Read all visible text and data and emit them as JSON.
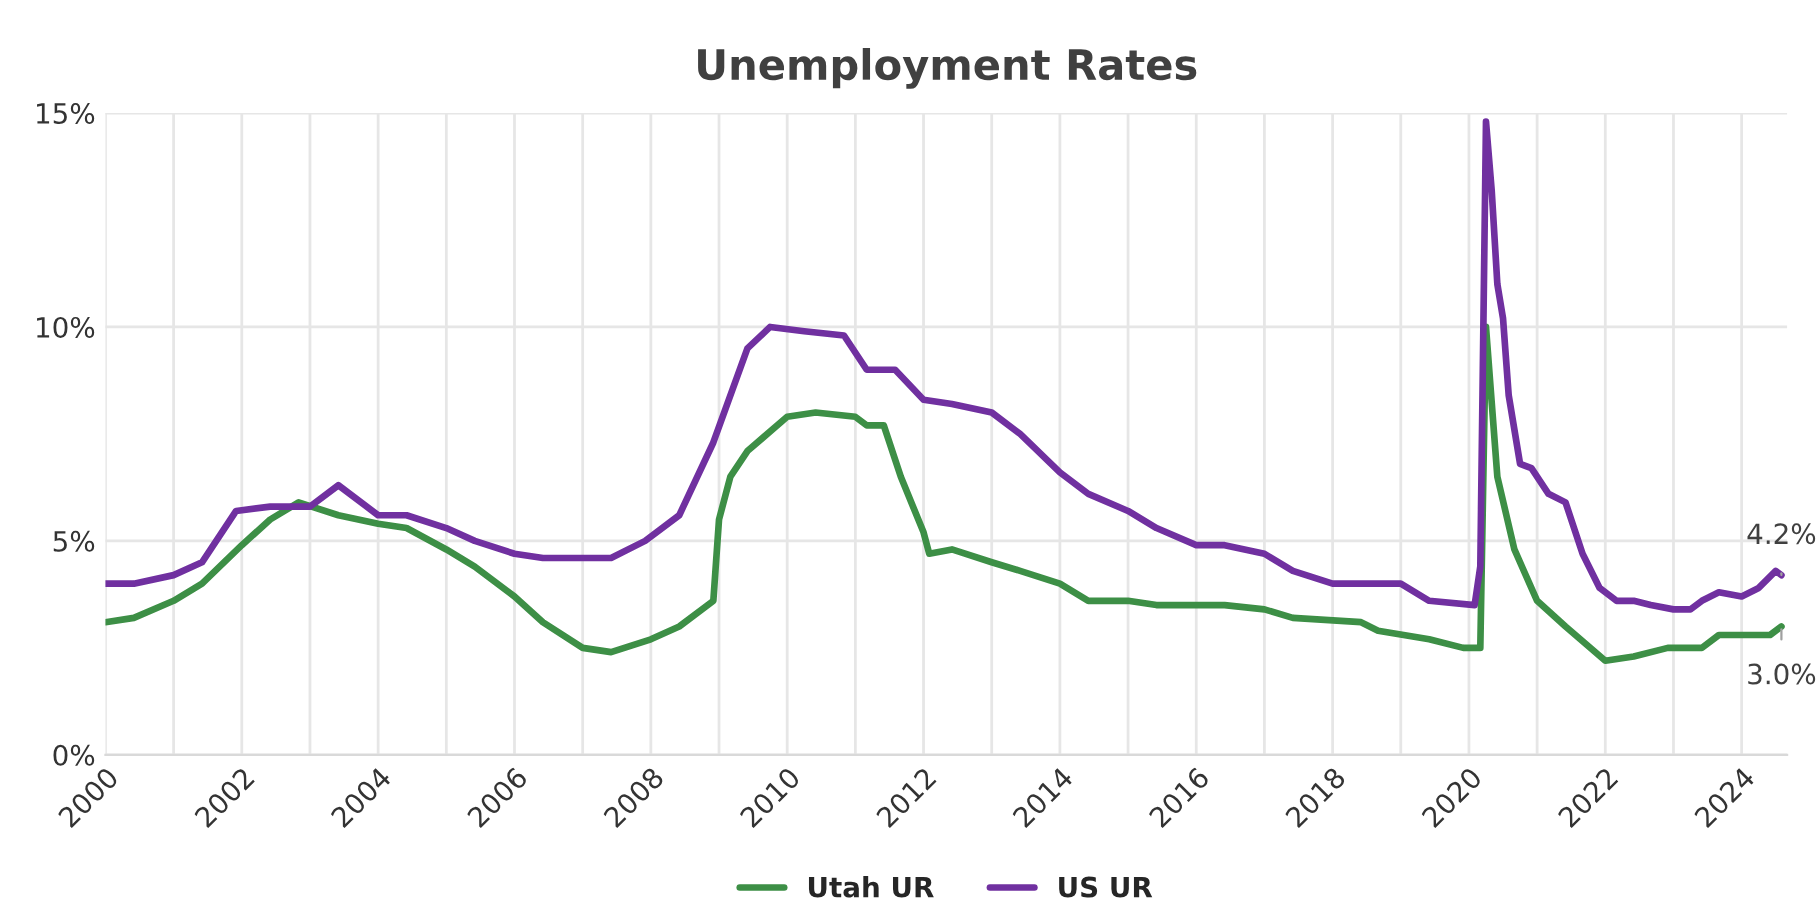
{
  "chart_data": {
    "type": "line",
    "title": "Unemployment Rates",
    "xlim": [
      "2000-01",
      "2024-09"
    ],
    "xticks": [
      {
        "value": "2000",
        "label": "2000"
      },
      {
        "value": "2001",
        "label": null
      },
      {
        "value": "2002",
        "label": "2002"
      },
      {
        "value": "2003",
        "label": null
      },
      {
        "value": "2004",
        "label": "2004"
      },
      {
        "value": "2005",
        "label": null
      },
      {
        "value": "2006",
        "label": "2006"
      },
      {
        "value": "2007",
        "label": null
      },
      {
        "value": "2008",
        "label": "2008"
      },
      {
        "value": "2009",
        "label": null
      },
      {
        "value": "2010",
        "label": "2010"
      },
      {
        "value": "2011",
        "label": null
      },
      {
        "value": "2012",
        "label": "2012"
      },
      {
        "value": "2013",
        "label": null
      },
      {
        "value": "2014",
        "label": "2014"
      },
      {
        "value": "2015",
        "label": null
      },
      {
        "value": "2016",
        "label": "2016"
      },
      {
        "value": "2017",
        "label": null
      },
      {
        "value": "2018",
        "label": "2018"
      },
      {
        "value": "2019",
        "label": null
      },
      {
        "value": "2020",
        "label": "2020"
      },
      {
        "value": "2021",
        "label": null
      },
      {
        "value": "2022",
        "label": "2022"
      },
      {
        "value": "2023",
        "label": null
      },
      {
        "value": "2024",
        "label": "2024"
      }
    ],
    "ylim": [
      0,
      15
    ],
    "yticks": [
      {
        "value": 0,
        "label": "0%"
      },
      {
        "value": 5,
        "label": "5%"
      },
      {
        "value": 10,
        "label": "10%"
      },
      {
        "value": 15,
        "label": "15%"
      }
    ],
    "grid": true,
    "legend": "bottom",
    "marker": "none",
    "line_style": "solid",
    "series": [
      {
        "name": "Utah UR",
        "color": "#3d8f46",
        "x": [
          "2000-01",
          "2000-06",
          "2001-01",
          "2001-06",
          "2002-01",
          "2002-06",
          "2002-11",
          "2003-06",
          "2004-01",
          "2004-06",
          "2005-01",
          "2005-06",
          "2006-01",
          "2006-06",
          "2007-01",
          "2007-06",
          "2008-01",
          "2008-06",
          "2008-12",
          "2009-01",
          "2009-03",
          "2009-06",
          "2010-01",
          "2010-06",
          "2011-01",
          "2011-03",
          "2011-06",
          "2011-09",
          "2012-01",
          "2012-02",
          "2012-06",
          "2013-01",
          "2013-06",
          "2014-01",
          "2014-06",
          "2015-01",
          "2015-06",
          "2016-06",
          "2017-01",
          "2017-06",
          "2018-06",
          "2018-09",
          "2019-06",
          "2019-12",
          "2020-03",
          "2020-04",
          "2020-06",
          "2020-09",
          "2021-01",
          "2021-06",
          "2022-01",
          "2022-06",
          "2022-12",
          "2023-06",
          "2023-09",
          "2024-06",
          "2024-08"
        ],
        "values": [
          3.1,
          3.2,
          3.6,
          4.0,
          4.9,
          5.5,
          5.9,
          5.6,
          5.4,
          5.3,
          4.8,
          4.4,
          3.7,
          3.1,
          2.5,
          2.4,
          2.7,
          3.0,
          3.6,
          5.5,
          6.5,
          7.1,
          7.9,
          8.0,
          7.9,
          7.7,
          7.7,
          6.5,
          5.2,
          4.7,
          4.8,
          4.5,
          4.3,
          4.0,
          3.6,
          3.6,
          3.5,
          3.5,
          3.4,
          3.2,
          3.1,
          2.9,
          2.7,
          2.5,
          2.5,
          10.0,
          6.5,
          4.8,
          3.6,
          3.0,
          2.2,
          2.3,
          2.5,
          2.5,
          2.8,
          2.8,
          3.0
        ]
      },
      {
        "name": "US UR",
        "color": "#7030a0",
        "x": [
          "2000-01",
          "2000-06",
          "2001-01",
          "2001-06",
          "2001-12",
          "2002-06",
          "2003-01",
          "2003-06",
          "2004-01",
          "2004-06",
          "2005-01",
          "2005-06",
          "2006-01",
          "2006-06",
          "2007-01",
          "2007-06",
          "2007-12",
          "2008-06",
          "2008-12",
          "2009-06",
          "2009-10",
          "2010-04",
          "2010-11",
          "2011-03",
          "2011-08",
          "2012-01",
          "2012-06",
          "2013-01",
          "2013-06",
          "2014-01",
          "2014-06",
          "2015-01",
          "2015-06",
          "2016-01",
          "2016-06",
          "2017-01",
          "2017-06",
          "2018-01",
          "2018-06",
          "2019-01",
          "2019-06",
          "2020-02",
          "2020-03",
          "2020-04",
          "2020-05",
          "2020-06",
          "2020-07",
          "2020-08",
          "2020-10",
          "2020-12",
          "2021-03",
          "2021-06",
          "2021-09",
          "2021-12",
          "2022-03",
          "2022-06",
          "2022-09",
          "2023-01",
          "2023-04",
          "2023-06",
          "2023-09",
          "2024-01",
          "2024-04",
          "2024-07",
          "2024-08"
        ],
        "values": [
          4.0,
          4.0,
          4.2,
          4.5,
          5.7,
          5.8,
          5.8,
          6.3,
          5.6,
          5.6,
          5.3,
          5.0,
          4.7,
          4.6,
          4.6,
          4.6,
          5.0,
          5.6,
          7.3,
          9.5,
          10.0,
          9.9,
          9.8,
          9.0,
          9.0,
          8.3,
          8.2,
          8.0,
          7.5,
          6.6,
          6.1,
          5.7,
          5.3,
          4.9,
          4.9,
          4.7,
          4.3,
          4.0,
          4.0,
          4.0,
          3.6,
          3.5,
          4.4,
          14.8,
          13.2,
          11.0,
          10.2,
          8.4,
          6.8,
          6.7,
          6.1,
          5.9,
          4.7,
          3.9,
          3.6,
          3.6,
          3.5,
          3.4,
          3.4,
          3.6,
          3.8,
          3.7,
          3.9,
          4.3,
          4.2
        ]
      }
    ],
    "annotations": [
      {
        "text": "4.2%",
        "x": "2024-08",
        "y": 4.2
      },
      {
        "text": "3.0%",
        "x": "2024-08",
        "y": 3.0
      }
    ]
  }
}
